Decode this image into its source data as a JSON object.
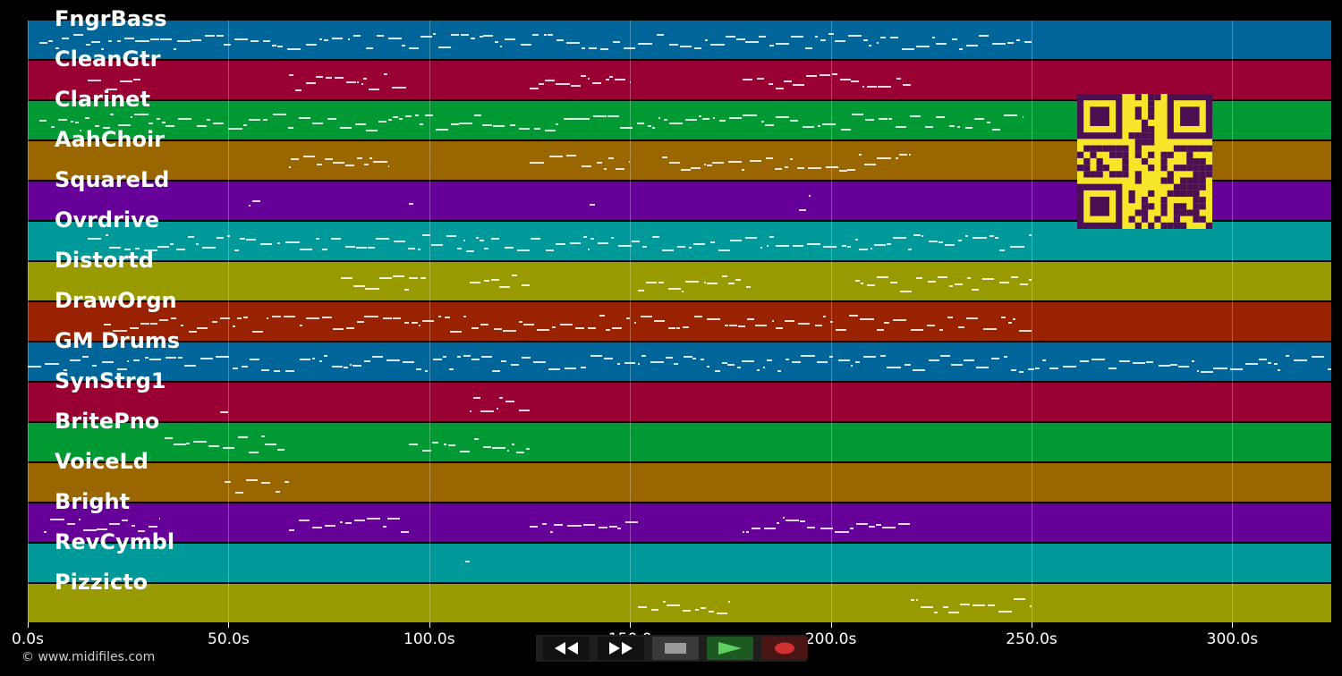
{
  "tracks": [
    {
      "name": "FngrBass",
      "color": "#006699"
    },
    {
      "name": "CleanGtr",
      "color": "#990033"
    },
    {
      "name": "Clarinet",
      "color": "#009933"
    },
    {
      "name": "AahChoir",
      "color": "#996600"
    },
    {
      "name": "SquareLd",
      "color": "#660099"
    },
    {
      "name": "Ovrdrive",
      "color": "#009999"
    },
    {
      "name": "Distortd",
      "color": "#999900"
    },
    {
      "name": "DrawOrgn",
      "color": "#992200"
    },
    {
      "name": "GM Drums",
      "color": "#006699"
    },
    {
      "name": "SynStrg1",
      "color": "#990033"
    },
    {
      "name": "BritePno",
      "color": "#009933"
    },
    {
      "name": "VoiceLd",
      "color": "#996600"
    },
    {
      "name": "Bright",
      "color": "#660099"
    },
    {
      "name": "RevCymbl",
      "color": "#009999"
    },
    {
      "name": "Pizzicto",
      "color": "#999900"
    }
  ],
  "time_axis": {
    "ticks": [
      "0.0s",
      "50.0s",
      "100.0s",
      "150.0",
      "200.0s",
      "250.0s",
      "300.0s"
    ],
    "tick_values": [
      0,
      50,
      100,
      150,
      200,
      250,
      300
    ],
    "max_seconds": 325
  },
  "transport": {
    "buttons": [
      {
        "name": "rewind",
        "icon": "rewind-icon"
      },
      {
        "name": "fast-forward",
        "icon": "fast-forward-icon"
      },
      {
        "name": "stop",
        "icon": "stop-icon"
      },
      {
        "name": "play",
        "icon": "play-icon"
      },
      {
        "name": "record",
        "icon": "record-icon"
      }
    ]
  },
  "copyright": "© www.midifiles.com",
  "qr_code": {
    "colors": {
      "background": "#f5e62a",
      "modules": "#4a1053"
    }
  }
}
